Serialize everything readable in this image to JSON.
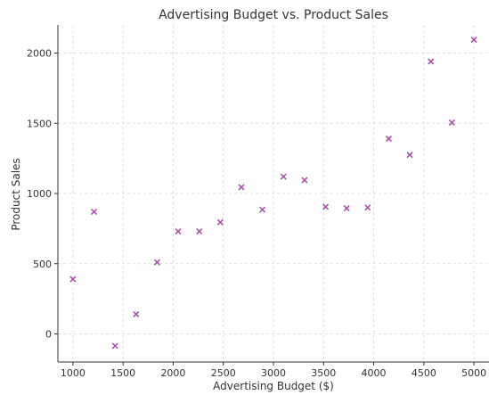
{
  "chart_data": {
    "type": "scatter",
    "title": "Advertising Budget vs. Product Sales",
    "xlabel": "Advertising Budget ($)",
    "ylabel": "Product Sales",
    "xlim": [
      850,
      5150
    ],
    "ylim": [
      -200,
      2200
    ],
    "x_ticks": [
      1000,
      1500,
      2000,
      2500,
      3000,
      3500,
      4000,
      4500,
      5000
    ],
    "y_ticks": [
      0,
      500,
      1000,
      1500,
      2000
    ],
    "grid": true,
    "marker": "x",
    "color": "#a64ca6",
    "x": [
      1000,
      1210,
      1420,
      1630,
      1840,
      2050,
      2260,
      2470,
      2680,
      2890,
      3100,
      3310,
      3520,
      3730,
      3940,
      4150,
      4360,
      4570,
      4780,
      5000
    ],
    "y": [
      390,
      870,
      -85,
      140,
      510,
      730,
      730,
      795,
      1045,
      885,
      1120,
      1095,
      905,
      895,
      900,
      1390,
      1275,
      1940,
      1505,
      2095
    ]
  }
}
